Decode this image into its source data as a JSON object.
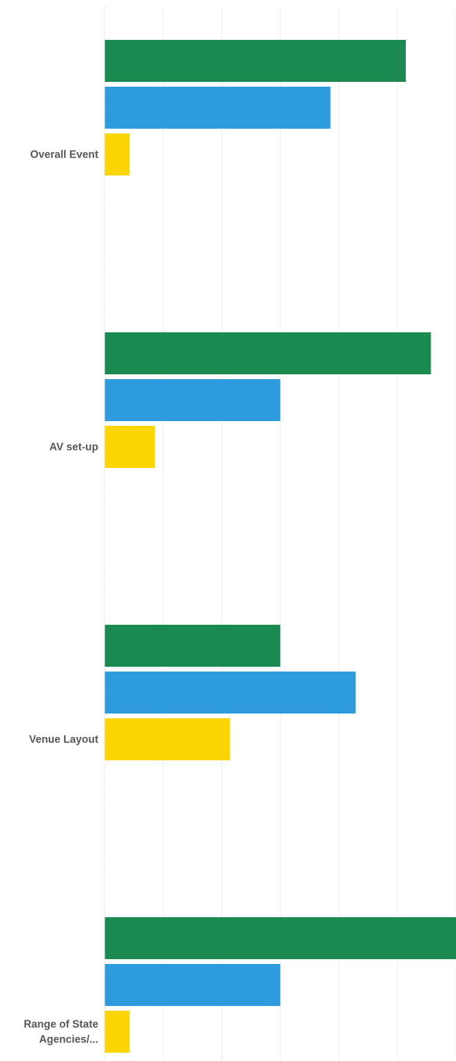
{
  "chart_data": {
    "type": "bar",
    "orientation": "horizontal",
    "categories": [
      [
        "Overall Event"
      ],
      [
        "AV set-up"
      ],
      [
        "Venue Layout"
      ],
      [
        "Range of State",
        "Agencies/..."
      ]
    ],
    "series": [
      {
        "color": "#1b8a50",
        "values": [
          9,
          9.75,
          5.25,
          10.5
        ]
      },
      {
        "color": "#2f9bdf",
        "values": [
          6.75,
          5.25,
          7.5,
          5.25
        ]
      },
      {
        "color": "#fdd503",
        "values": [
          0.75,
          1.5,
          3.75,
          0.75
        ]
      }
    ],
    "xlim": [
      0,
      10.5
    ],
    "grid": true,
    "legend": "none"
  }
}
